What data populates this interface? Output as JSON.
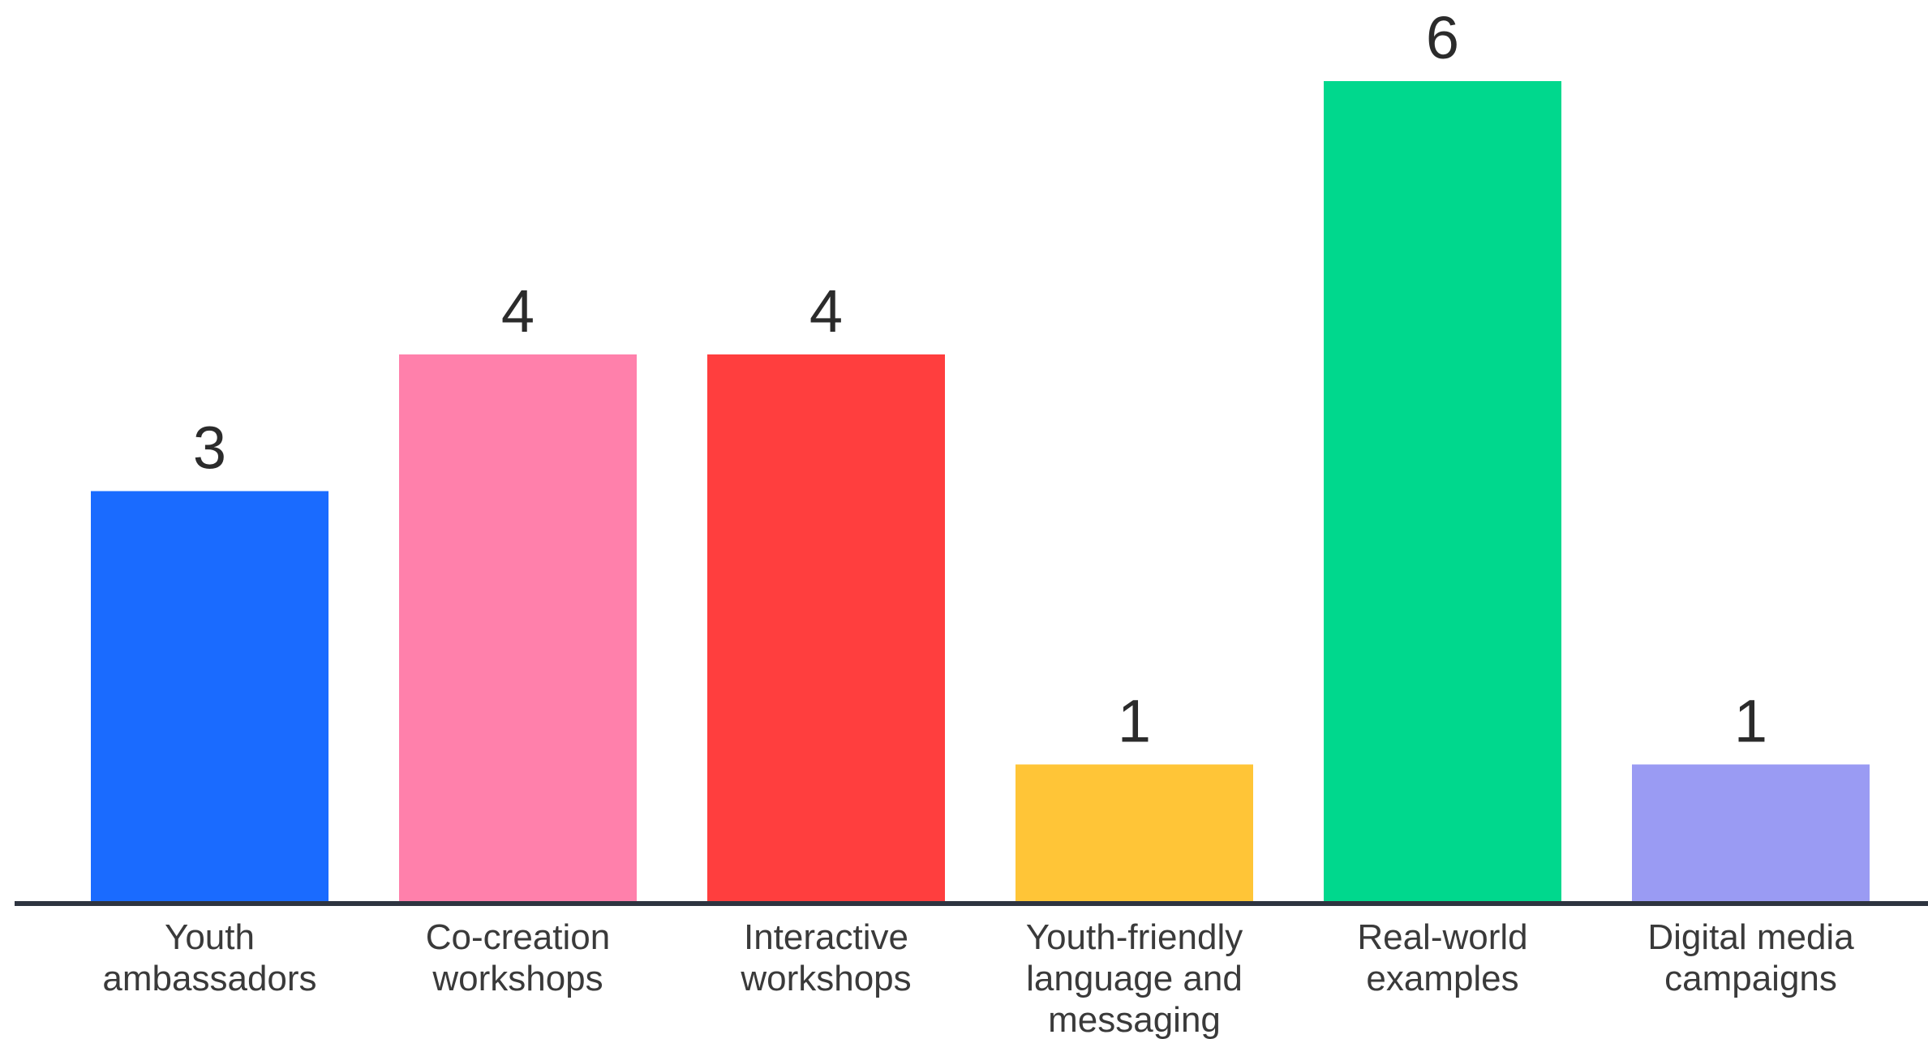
{
  "chart_data": {
    "type": "bar",
    "categories": [
      [
        "Youth",
        "ambassadors"
      ],
      [
        "Co-creation",
        "workshops"
      ],
      [
        "Interactive",
        "workshops"
      ],
      [
        "Youth-friendly",
        "language and",
        "messaging"
      ],
      [
        "Real-world",
        "examples"
      ],
      [
        "Digital media",
        "campaigns"
      ]
    ],
    "values": [
      3,
      4,
      4,
      1,
      6,
      1
    ],
    "bar_colors": [
      "#1a6bff",
      "#ff80ab",
      "#ff3e3e",
      "#ffc537",
      "#00d88d",
      "#9a9bf3"
    ],
    "axis_color": "#2e3440",
    "ylim": [
      0,
      6
    ],
    "title": "",
    "xlabel": "",
    "ylabel": "",
    "grid": false,
    "legend": "none"
  }
}
